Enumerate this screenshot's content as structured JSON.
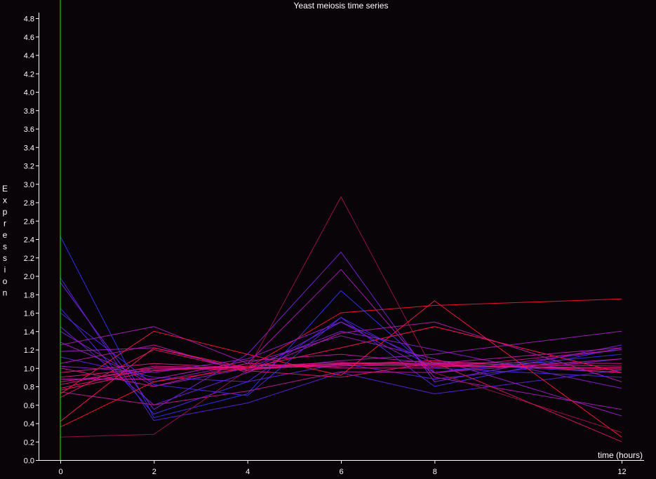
{
  "title": "Yeast meiosis time series",
  "xlabel": "time (hours)",
  "ylabel_letters": [
    "E",
    "x",
    "p",
    "r",
    "e",
    "s",
    "s",
    "i",
    "o",
    "n"
  ],
  "colors": {
    "background": "#080408",
    "axis": "#ffffff",
    "marker_line": "#00ff00",
    "text": "#ffffff"
  },
  "chart_data": {
    "type": "line",
    "title": "Yeast meiosis time series",
    "xlabel": "time (hours)",
    "ylabel": "Expression",
    "x": [
      0,
      2,
      4,
      6,
      8,
      12
    ],
    "x_ticks": [
      "0",
      "2",
      "4",
      "6",
      "8",
      "12"
    ],
    "y_ticks": [
      "0.0",
      "0.2",
      "0.4",
      "0.6",
      "0.8",
      "1.0",
      "1.2",
      "1.4",
      "1.6",
      "1.8",
      "2.0",
      "2.2",
      "2.4",
      "2.6",
      "2.8",
      "3.0",
      "3.2",
      "3.4",
      "3.6",
      "3.8",
      "4.0",
      "4.2",
      "4.4",
      "4.6",
      "4.8"
    ],
    "xlim": [
      -0.5,
      12.3
    ],
    "ylim": [
      0,
      4.95
    ],
    "grid": false,
    "legend": "none",
    "vertical_marker_x": 0,
    "series": [
      {
        "color": "#3030f0",
        "values": [
          2.43,
          0.46,
          0.72,
          1.84,
          0.95,
          1.15
        ]
      },
      {
        "color": "#5a22e0",
        "values": [
          1.98,
          0.43,
          0.62,
          0.95,
          0.72,
          0.98
        ]
      },
      {
        "color": "#7a1fd8",
        "values": [
          1.93,
          0.55,
          1.15,
          2.26,
          0.85,
          1.25
        ]
      },
      {
        "color": "#4a2ae8",
        "values": [
          1.65,
          0.5,
          0.85,
          1.55,
          0.8,
          1.22
        ]
      },
      {
        "color": "#6a22dc",
        "values": [
          1.45,
          0.6,
          0.95,
          1.5,
          1.05,
          0.95
        ]
      },
      {
        "color": "#8a1ccc",
        "values": [
          1.4,
          0.8,
          1.0,
          1.4,
          1.2,
          0.78
        ]
      },
      {
        "color": "#9a1ac0",
        "values": [
          1.28,
          0.85,
          1.05,
          1.35,
          1.1,
          0.48
        ]
      },
      {
        "color": "#aa18b8",
        "values": [
          1.25,
          1.45,
          1.05,
          2.07,
          0.9,
          0.55
        ]
      },
      {
        "color": "#a01cc0",
        "values": [
          1.18,
          1.22,
          0.98,
          1.08,
          1.15,
          1.4
        ]
      },
      {
        "color": "#6022e0",
        "values": [
          1.12,
          0.9,
          0.85,
          1.05,
          0.88,
          1.1
        ]
      },
      {
        "color": "#b818a8",
        "values": [
          1.05,
          1.25,
          0.95,
          1.38,
          1.5,
          0.85
        ]
      },
      {
        "color": "#c8168f",
        "values": [
          1.0,
          0.8,
          1.05,
          1.0,
          1.0,
          1.2
        ]
      },
      {
        "color": "#d81880",
        "values": [
          0.95,
          1.05,
          1.0,
          1.03,
          1.02,
          1.0
        ]
      },
      {
        "color": "#e01480",
        "values": [
          0.9,
          1.0,
          1.0,
          1.05,
          1.04,
          0.98
        ]
      },
      {
        "color": "#e01090",
        "values": [
          0.85,
          0.98,
          1.02,
          1.06,
          1.05,
          1.02
        ]
      },
      {
        "color": "#d0148c",
        "values": [
          0.82,
          1.02,
          1.0,
          1.02,
          1.06,
          1.05
        ]
      },
      {
        "color": "#e8107a",
        "values": [
          0.78,
          1.0,
          0.98,
          1.05,
          1.03,
          1.0
        ]
      },
      {
        "color": "#f01070",
        "values": [
          0.76,
          0.97,
          1.02,
          1.04,
          1.08,
          0.95
        ]
      },
      {
        "color": "#c01898",
        "values": [
          0.74,
          0.6,
          0.75,
          0.96,
          0.95,
          1.1
        ]
      },
      {
        "color": "#ff1040",
        "values": [
          0.72,
          1.4,
          1.15,
          0.92,
          1.73,
          0.25
        ]
      },
      {
        "color": "#ff1030",
        "values": [
          0.36,
          0.85,
          1.0,
          1.6,
          1.68,
          1.75
        ]
      },
      {
        "color": "#ff1058",
        "values": [
          0.42,
          1.22,
          1.0,
          1.22,
          1.45,
          0.95
        ]
      },
      {
        "color": "#9c1048",
        "values": [
          0.25,
          0.28,
          0.98,
          2.86,
          0.95,
          0.3
        ]
      },
      {
        "color": "#e01266",
        "values": [
          0.68,
          1.2,
          0.97,
          0.9,
          1.06,
          0.2
        ]
      },
      {
        "color": "#9018c8",
        "values": [
          1.02,
          0.95,
          1.1,
          1.5,
          0.95,
          1.2
        ]
      },
      {
        "color": "#4828e8",
        "values": [
          1.6,
          0.82,
          0.7,
          1.55,
          1.0,
          0.9
        ]
      },
      {
        "color": "#b81aa8",
        "values": [
          0.88,
          0.88,
          1.08,
          1.15,
          1.05,
          1.22
        ]
      }
    ]
  }
}
